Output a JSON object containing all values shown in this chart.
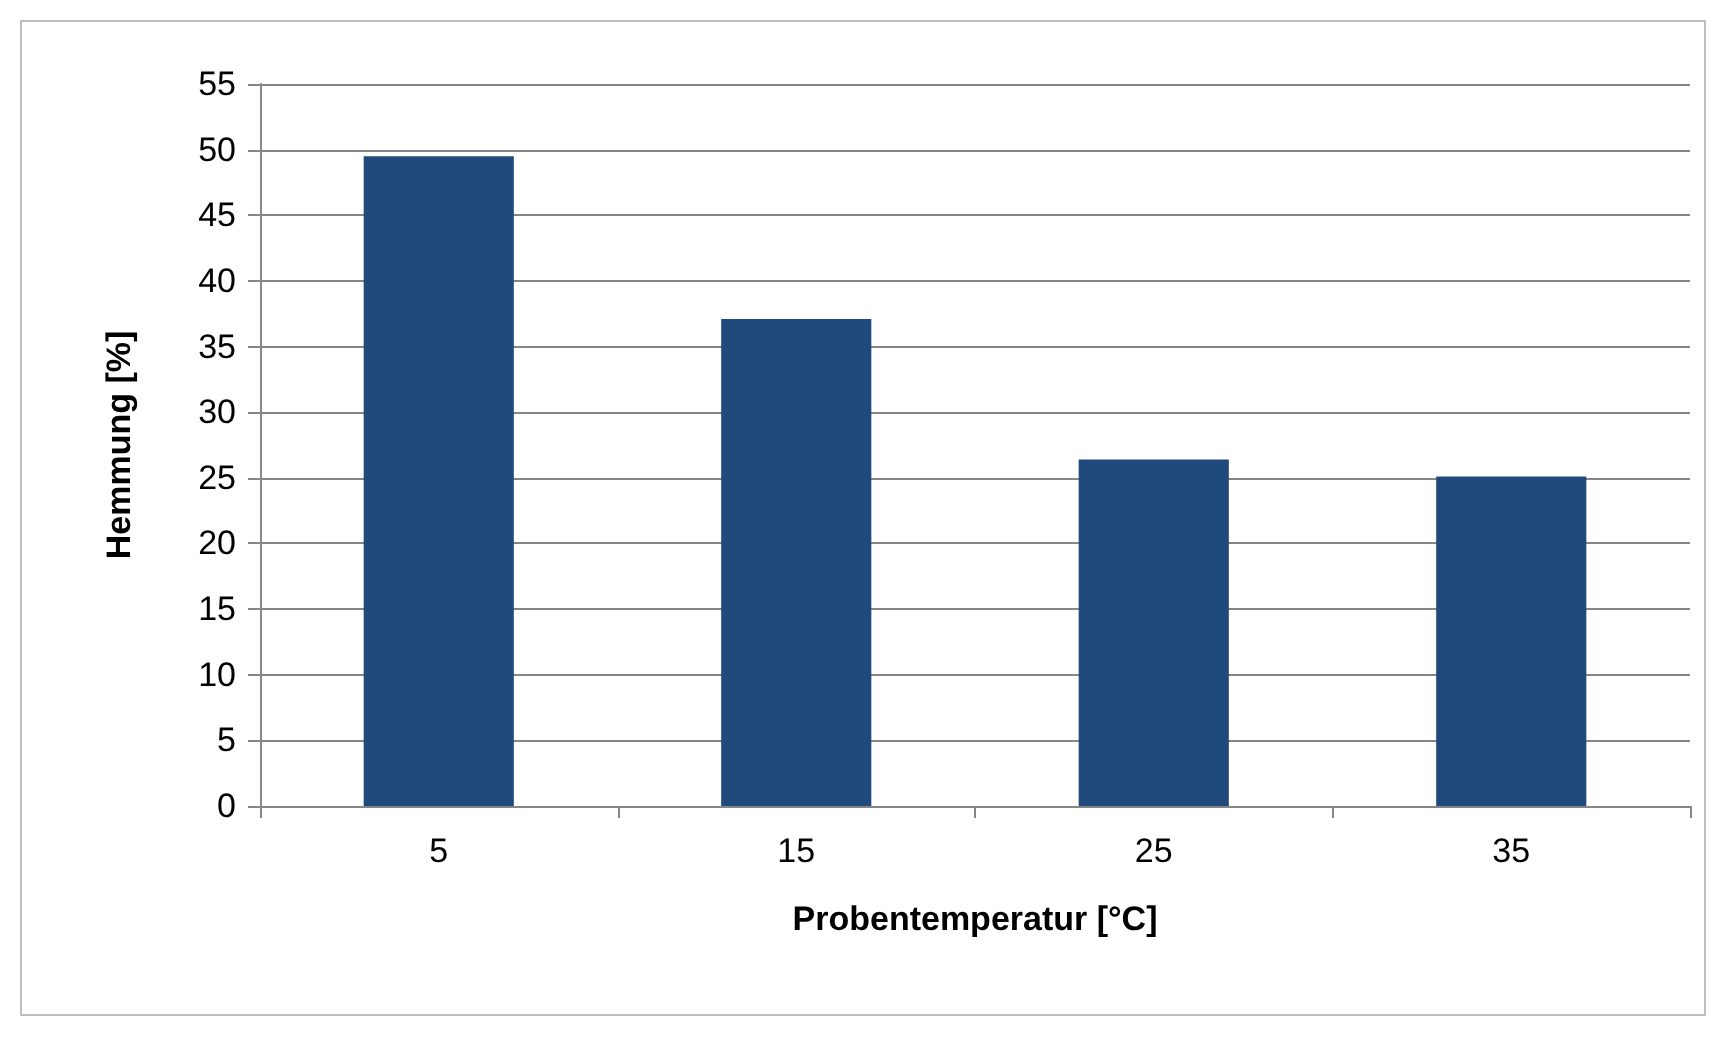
{
  "chart_data": {
    "type": "bar",
    "xlabel": "Probentemperatur [°C]",
    "ylabel": "Hemmung [%]",
    "categories": [
      "5",
      "15",
      "25",
      "35"
    ],
    "values": [
      49.5,
      37.1,
      26.4,
      25.1
    ],
    "color": "#214a7c",
    "ylim": [
      0,
      55
    ],
    "yticks": [
      0,
      5,
      10,
      15,
      20,
      25,
      30,
      35,
      40,
      45,
      50,
      55
    ],
    "grid": "y"
  }
}
